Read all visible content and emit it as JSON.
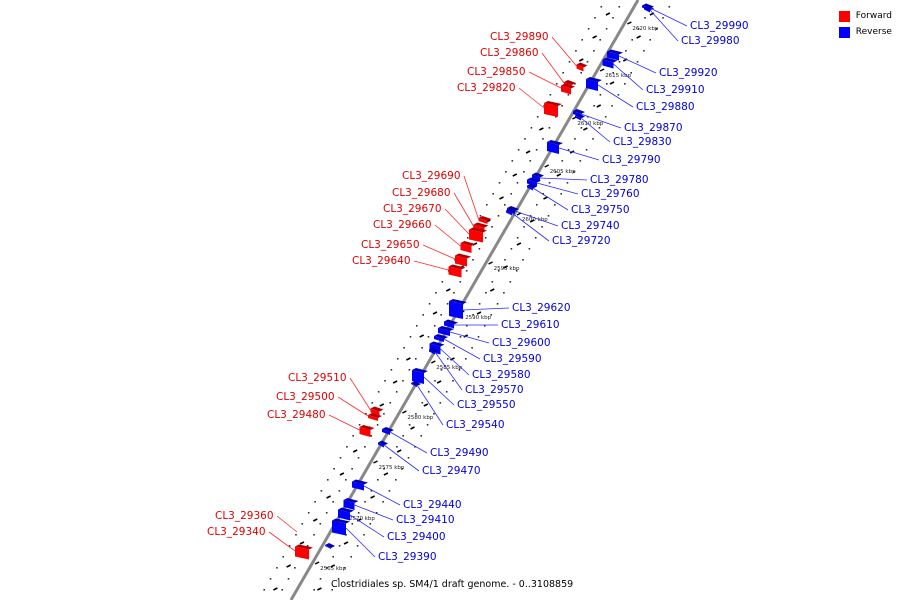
{
  "legend": {
    "forward": {
      "label": "Forward",
      "color": "#ff0000"
    },
    "reverse": {
      "label": "Reverse",
      "color": "#0000ff"
    }
  },
  "caption": "Clostridiales sp. SM4/1 draft genome. - 0..3108859",
  "ticks": [
    "2565 kbp",
    "2570 kbp",
    "2575 kbp",
    "2580 kbp",
    "2585 kbp",
    "2590 kbp",
    "2595 kbp",
    "2600 kbp",
    "2605 kbp",
    "2610 kbp",
    "2615 kbp",
    "2620 kbp"
  ],
  "forward_genes": [
    "CL3_29890",
    "CL3_29860",
    "CL3_29850",
    "CL3_29820",
    "CL3_29690",
    "CL3_29680",
    "CL3_29670",
    "CL3_29660",
    "CL3_29650",
    "CL3_29640",
    "CL3_29510",
    "CL3_29500",
    "CL3_29480",
    "CL3_29360",
    "CL3_29340"
  ],
  "reverse_genes": [
    "CL3_29990",
    "CL3_29980",
    "CL3_29920",
    "CL3_29910",
    "CL3_29880",
    "CL3_29870",
    "CL3_29830",
    "CL3_29790",
    "CL3_29780",
    "CL3_29760",
    "CL3_29750",
    "CL3_29740",
    "CL3_29720",
    "CL3_29620",
    "CL3_29610",
    "CL3_29600",
    "CL3_29590",
    "CL3_29580",
    "CL3_29570",
    "CL3_29550",
    "CL3_29540",
    "CL3_29490",
    "CL3_29470",
    "CL3_29440",
    "CL3_29410",
    "CL3_29400",
    "CL3_29390"
  ]
}
